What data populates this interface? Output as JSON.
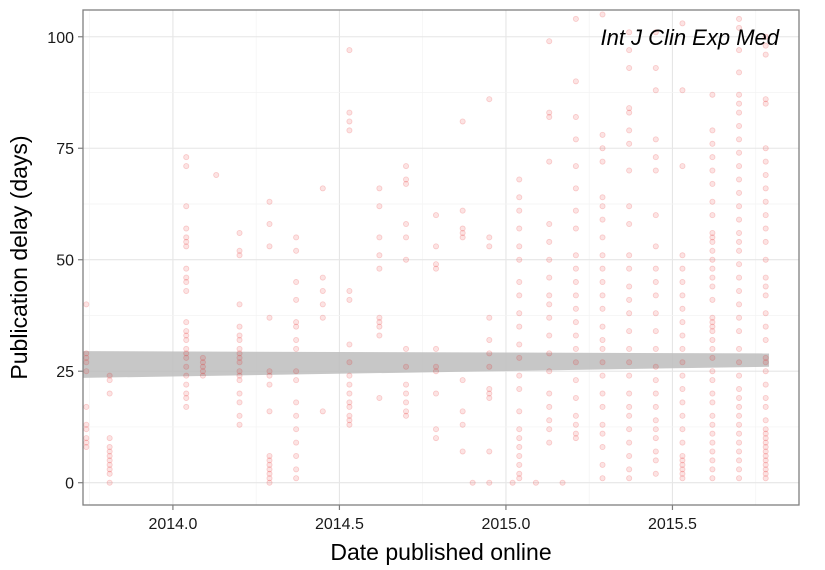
{
  "chart_data": {
    "type": "scatter",
    "annotation": "Int J Clin Exp Med",
    "xlabel": "Date published online",
    "ylabel": "Publication delay (days)",
    "xlim": [
      2013.73,
      2015.88
    ],
    "ylim": [
      -5,
      106
    ],
    "x_ticks": [
      2014.0,
      2014.5,
      2015.0,
      2015.5
    ],
    "x_tick_labels": [
      "2014.0",
      "2014.5",
      "2015.0",
      "2015.5"
    ],
    "y_ticks": [
      0,
      25,
      50,
      75,
      100
    ],
    "y_tick_labels": [
      "0",
      "25",
      "50",
      "75",
      "100"
    ],
    "grid": true,
    "legend": "none",
    "point_color": "#e31a1c",
    "point_opacity": 0.12,
    "ribbon_color": "#bdbdbd",
    "trend_band": {
      "x": [
        2013.73,
        2015.79
      ],
      "lower": [
        23.5,
        26
      ],
      "upper": [
        29.5,
        29
      ]
    },
    "columns": [
      {
        "x": 2013.74,
        "y": [
          40,
          29,
          28,
          27,
          25,
          17,
          13,
          12,
          10,
          9,
          8
        ]
      },
      {
        "x": 2013.81,
        "y": [
          24,
          23,
          20,
          10,
          8,
          7,
          6,
          5,
          4,
          3,
          2,
          0
        ]
      },
      {
        "x": 2014.04,
        "y": [
          73,
          71,
          62,
          57,
          55,
          54,
          53,
          48,
          46,
          45,
          43,
          36,
          34,
          33,
          32,
          30,
          29,
          28,
          26,
          24,
          22,
          20,
          19,
          17
        ]
      },
      {
        "x": 2014.09,
        "y": [
          28,
          27,
          26,
          25,
          24
        ]
      },
      {
        "x": 2014.13,
        "y": [
          69
        ]
      },
      {
        "x": 2014.2,
        "y": [
          56,
          52,
          51,
          40,
          35,
          33,
          32,
          30,
          29,
          28,
          27,
          25,
          24,
          23,
          20,
          18,
          15,
          13
        ]
      },
      {
        "x": 2014.29,
        "y": [
          63,
          58,
          53,
          37,
          25,
          24,
          22,
          16,
          6,
          5,
          4,
          3,
          2,
          1,
          0
        ]
      },
      {
        "x": 2014.37,
        "y": [
          55,
          52,
          45,
          41,
          36,
          35,
          32,
          30,
          25,
          23,
          18,
          15,
          12,
          9,
          6,
          3,
          1
        ]
      },
      {
        "x": 2014.45,
        "y": [
          66,
          46,
          43,
          40,
          37,
          16
        ]
      },
      {
        "x": 2014.53,
        "y": [
          97,
          83,
          81,
          79,
          43,
          41,
          31,
          27,
          24,
          22,
          20,
          18,
          17,
          15,
          14,
          13
        ]
      },
      {
        "x": 2014.62,
        "y": [
          66,
          62,
          55,
          51,
          48,
          37,
          36,
          35,
          33,
          19
        ]
      },
      {
        "x": 2014.7,
        "y": [
          71,
          68,
          67,
          58,
          55,
          50,
          30,
          26,
          22,
          20,
          18,
          16,
          15
        ]
      },
      {
        "x": 2014.79,
        "y": [
          60,
          53,
          49,
          48,
          30,
          26,
          25,
          20,
          12,
          10
        ]
      },
      {
        "x": 2014.87,
        "y": [
          81,
          61,
          57,
          56,
          55,
          23,
          16,
          13,
          7
        ]
      },
      {
        "x": 2014.9,
        "y": [
          0
        ]
      },
      {
        "x": 2014.95,
        "y": [
          86,
          55,
          53,
          37,
          32,
          29,
          26,
          21,
          20,
          19,
          7,
          0
        ]
      },
      {
        "x": 2015.02,
        "y": [
          0
        ]
      },
      {
        "x": 2015.04,
        "y": [
          68,
          64,
          61,
          57,
          53,
          50,
          45,
          42,
          38,
          35,
          31,
          28,
          24,
          21,
          16,
          12,
          10,
          8,
          6,
          4,
          2,
          1
        ]
      },
      {
        "x": 2015.09,
        "y": [
          0
        ]
      },
      {
        "x": 2015.13,
        "y": [
          99,
          83,
          82,
          72,
          58,
          54,
          50,
          46,
          42,
          40,
          37,
          33,
          29,
          25,
          20,
          17,
          14,
          12,
          9
        ]
      },
      {
        "x": 2015.17,
        "y": [
          0
        ]
      },
      {
        "x": 2015.21,
        "y": [
          104,
          90,
          82,
          77,
          71,
          66,
          61,
          57,
          51,
          48,
          45,
          42,
          39,
          36,
          33,
          30,
          27,
          23,
          19,
          15,
          13,
          11,
          10
        ]
      },
      {
        "x": 2015.29,
        "y": [
          105,
          78,
          75,
          72,
          64,
          62,
          59,
          55,
          51,
          48,
          45,
          42,
          39,
          35,
          32,
          30,
          27,
          24,
          20,
          17,
          13,
          11,
          8,
          4,
          1
        ]
      },
      {
        "x": 2015.37,
        "y": [
          101,
          97,
          93,
          84,
          83,
          79,
          76,
          70,
          62,
          58,
          51,
          48,
          44,
          41,
          38,
          34,
          30,
          27,
          24,
          20,
          17,
          15,
          12,
          9,
          6,
          3,
          1
        ]
      },
      {
        "x": 2015.45,
        "y": [
          101,
          93,
          88,
          77,
          73,
          70,
          60,
          53,
          48,
          45,
          42,
          38,
          34,
          30,
          26,
          23,
          20,
          17,
          14,
          12,
          10,
          7,
          5,
          2
        ]
      },
      {
        "x": 2015.53,
        "y": [
          103,
          88,
          71,
          51,
          48,
          45,
          42,
          39,
          36,
          33,
          30,
          27,
          24,
          21,
          18,
          15,
          12,
          9,
          6,
          5,
          4,
          3,
          2,
          1
        ]
      },
      {
        "x": 2015.62,
        "y": [
          87,
          79,
          76,
          73,
          70,
          67,
          63,
          60,
          56,
          55,
          54,
          52,
          50,
          48,
          46,
          44,
          41,
          37,
          36,
          35,
          34,
          32,
          30,
          28,
          25,
          23,
          20,
          18,
          15,
          13,
          11,
          9,
          7,
          5,
          3,
          1
        ]
      },
      {
        "x": 2015.7,
        "y": [
          104,
          102,
          97,
          92,
          87,
          85,
          83,
          80,
          77,
          74,
          71,
          68,
          65,
          62,
          59,
          56,
          54,
          52,
          49,
          46,
          43,
          40,
          37,
          34,
          30,
          27,
          24,
          21,
          19,
          17,
          15,
          13,
          11,
          9,
          7,
          5,
          3,
          1
        ]
      },
      {
        "x": 2015.78,
        "y": [
          100,
          98,
          96,
          86,
          85,
          75,
          72,
          69,
          66,
          63,
          60,
          57,
          54,
          50,
          46,
          44,
          42,
          38,
          35,
          32,
          28,
          27,
          25,
          22,
          19,
          17,
          14,
          12,
          11,
          10,
          9,
          8,
          7,
          6,
          5,
          4,
          3,
          2,
          1
        ]
      }
    ]
  }
}
